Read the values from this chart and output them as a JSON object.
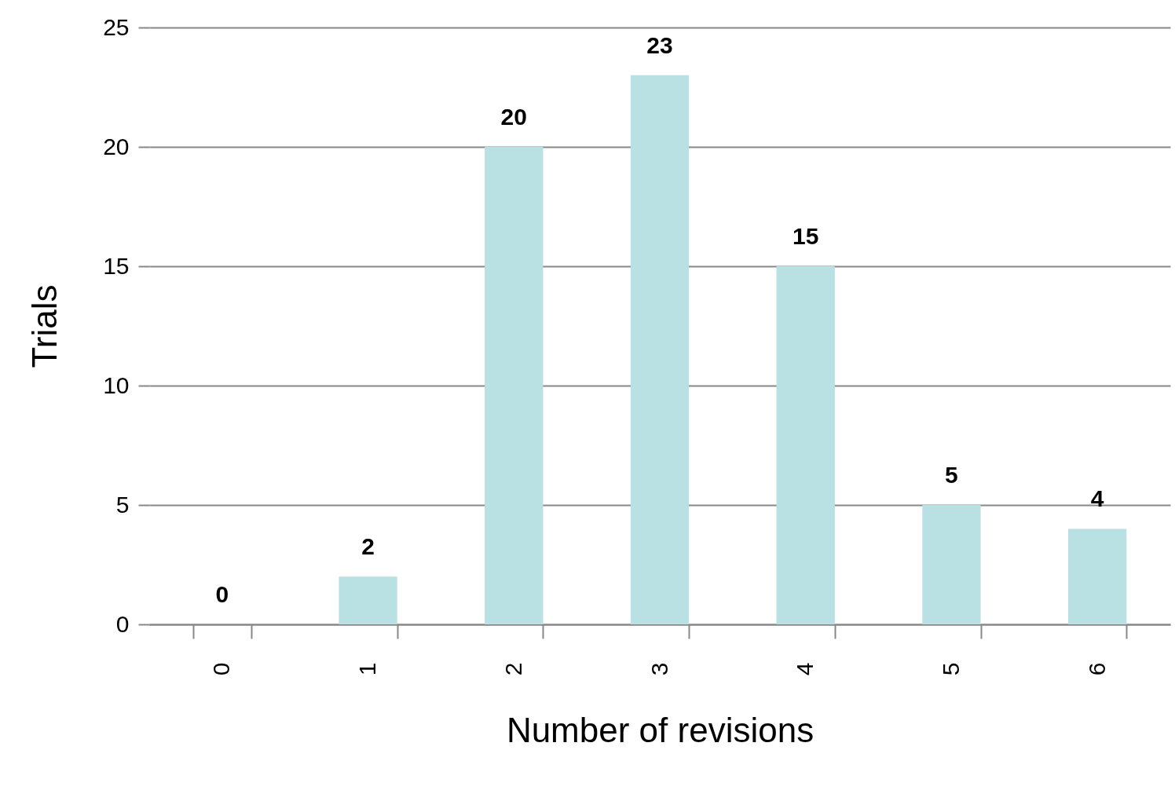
{
  "chart_data": {
    "type": "bar",
    "xlabel": "Number of revisions",
    "ylabel": "Trials",
    "categories": [
      "0",
      "1",
      "2",
      "3",
      "4",
      "5",
      "6"
    ],
    "values": [
      0,
      2,
      20,
      23,
      15,
      5,
      4
    ],
    "color": "#b9e0e2",
    "ylim": [
      0,
      25
    ],
    "yticks": [
      0,
      5,
      10,
      15,
      20,
      25
    ],
    "grid": "y",
    "data_labels": true
  }
}
